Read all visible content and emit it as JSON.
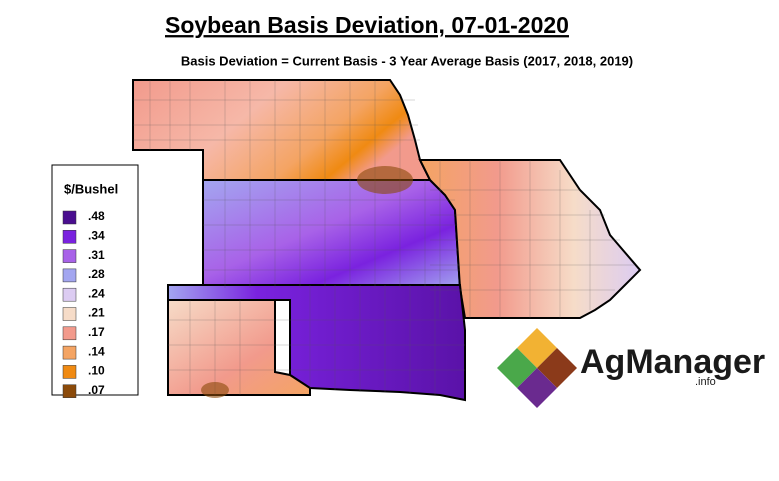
{
  "header": {
    "title": "Soybean Basis Deviation, 07-01-2020",
    "subtitle": "Basis Deviation = Current Basis - 3 Year Average Basis (2017, 2018, 2019)"
  },
  "legend": {
    "title": "$/Bushel",
    "items": [
      {
        "label": ".48",
        "color": "#4a0e8f"
      },
      {
        "label": ".34",
        "color": "#7a22df"
      },
      {
        "label": ".31",
        "color": "#a862e8"
      },
      {
        "label": ".28",
        "color": "#a3a6f0"
      },
      {
        "label": ".24",
        "color": "#dcccf2"
      },
      {
        "label": ".21",
        "color": "#f6dcc8"
      },
      {
        "label": ".17",
        "color": "#f29a8c"
      },
      {
        "label": ".14",
        "color": "#f4a463"
      },
      {
        "label": ".10",
        "color": "#f08a12"
      },
      {
        "label": ".07",
        "color": "#8b4a0a"
      }
    ]
  },
  "logo": {
    "name": "AgManager",
    "suffix": ".info"
  }
}
